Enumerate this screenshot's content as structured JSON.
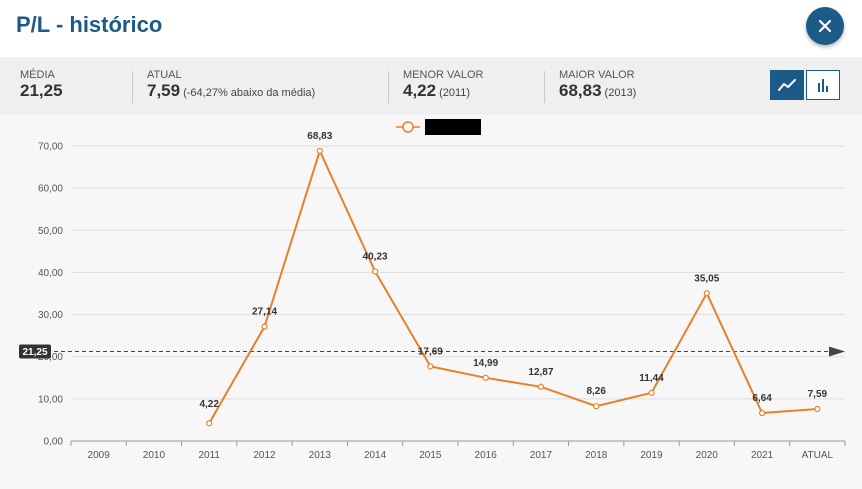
{
  "header": {
    "title": "P/L - histórico"
  },
  "stats": {
    "media": {
      "label": "MÉDIA",
      "value": "21,25"
    },
    "atual": {
      "label": "ATUAL",
      "value": "7,59",
      "note": "(-64,27% abaixo da média)"
    },
    "menor": {
      "label": "MENOR VALOR",
      "value": "4,22",
      "note": "(2011)"
    },
    "maior": {
      "label": "MAIOR VALOR",
      "value": "68,83",
      "note": "(2013)"
    }
  },
  "icons": {
    "close": "close-icon",
    "line": "line-chart-icon",
    "bar": "bar-chart-icon"
  },
  "colors": {
    "brand": "#1c5b87",
    "series": "#e8802a",
    "grid": "#dddddd"
  },
  "chart_data": {
    "type": "line",
    "categories": [
      "2009",
      "2010",
      "2011",
      "2012",
      "2013",
      "2014",
      "2015",
      "2016",
      "2017",
      "2018",
      "2019",
      "2020",
      "2021",
      "ATUAL"
    ],
    "series": [
      {
        "values": [
          null,
          null,
          4.22,
          27.14,
          68.83,
          40.23,
          17.69,
          14.99,
          12.87,
          8.26,
          11.44,
          35.05,
          6.64,
          7.59
        ]
      }
    ],
    "data_labels": [
      "",
      "",
      "4,22",
      "27,14",
      "68,83",
      "40,23",
      "17,69",
      "14,99",
      "12,87",
      "8,26",
      "11,44",
      "35,05",
      "6,64",
      "7,59"
    ],
    "y_ticks": [
      "0,00",
      "10,00",
      "20,00",
      "30,00",
      "40,00",
      "50,00",
      "60,00",
      "70,00"
    ],
    "ylim": [
      0,
      70
    ],
    "grid": true,
    "reference_line": {
      "value": 21.25,
      "label": "21,25"
    },
    "legend": "top-center"
  }
}
